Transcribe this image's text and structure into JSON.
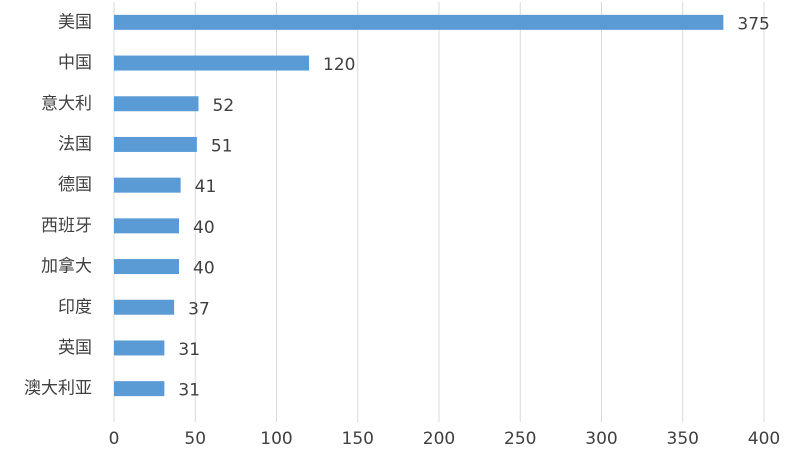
{
  "chart_data": {
    "type": "bar",
    "orientation": "horizontal",
    "categories": [
      "美国",
      "中国",
      "意大利",
      "法国",
      "德国",
      "西班牙",
      "加拿大",
      "印度",
      "英国",
      "澳大利亚"
    ],
    "values": [
      375,
      120,
      52,
      51,
      41,
      40,
      40,
      37,
      31,
      31
    ],
    "color": "#5b9bd5",
    "xlim": [
      0,
      400
    ],
    "xticks": [
      0,
      50,
      100,
      150,
      200,
      250,
      300,
      350,
      400
    ],
    "grid": true
  }
}
